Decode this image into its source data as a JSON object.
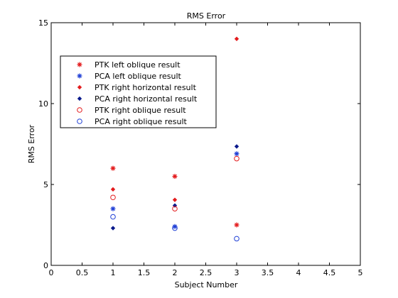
{
  "chart_data": {
    "type": "scatter",
    "title": "RMS Error",
    "xlabel": "Subject Number",
    "ylabel": "RMS Error",
    "xlim": [
      0,
      5
    ],
    "ylim": [
      0,
      15
    ],
    "xticks": [
      0,
      0.5,
      1,
      1.5,
      2,
      2.5,
      3,
      3.5,
      4,
      4.5,
      5
    ],
    "xtick_labels": [
      "0",
      "0.5",
      "1",
      "1.5",
      "2",
      "2.5",
      "3",
      "3.5",
      "4",
      "4.5",
      "5"
    ],
    "yticks": [
      0,
      5,
      10,
      15
    ],
    "ytick_labels": [
      "0",
      "5",
      "10",
      "15"
    ],
    "grid": false,
    "legend_position": "top-left",
    "series": [
      {
        "name": "PTK left oblique result",
        "marker": "asterisk",
        "color": "#e31a1c",
        "x": [
          1,
          2,
          3
        ],
        "y": [
          6.0,
          5.5,
          2.5
        ]
      },
      {
        "name": "PCA left oblique result",
        "marker": "asterisk",
        "color": "#1f3fd6",
        "x": [
          1,
          2,
          3
        ],
        "y": [
          3.5,
          2.4,
          6.9
        ]
      },
      {
        "name": "PTK right horizontal result",
        "marker": "diamond",
        "color": "#e31a1c",
        "x": [
          1,
          2,
          3
        ],
        "y": [
          4.7,
          4.05,
          14.0
        ]
      },
      {
        "name": "PCA right horizontal result",
        "marker": "diamond",
        "color": "#0a1a8c",
        "x": [
          1,
          2,
          3
        ],
        "y": [
          2.3,
          3.7,
          7.35
        ]
      },
      {
        "name": "PTK right oblique result",
        "marker": "circle",
        "color": "#e31a1c",
        "x": [
          1,
          2,
          3
        ],
        "y": [
          4.2,
          3.5,
          6.6
        ]
      },
      {
        "name": "PCA right oblique result",
        "marker": "circle",
        "color": "#1f3fd6",
        "x": [
          1,
          2,
          3
        ],
        "y": [
          3.0,
          2.3,
          1.65
        ]
      }
    ]
  }
}
